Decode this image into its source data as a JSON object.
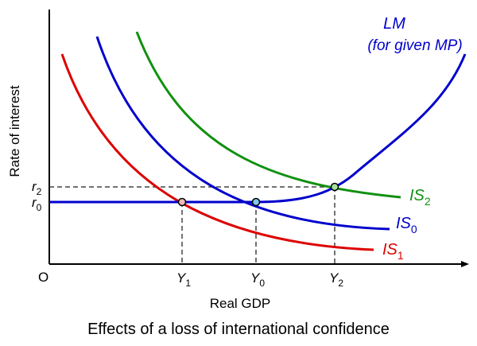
{
  "caption": "Effects of a loss of international confidence",
  "axes": {
    "x_label": "Real GDP",
    "y_label": "Rate of interest",
    "origin": "O"
  },
  "y_ticks": [
    {
      "base": "r",
      "sub": "2"
    },
    {
      "base": "r",
      "sub": "0"
    }
  ],
  "x_ticks": [
    {
      "base": "Y",
      "sub": "1"
    },
    {
      "base": "Y",
      "sub": "0"
    },
    {
      "base": "Y",
      "sub": "2"
    }
  ],
  "curves": {
    "lm": {
      "label": "LM",
      "note": "(for given MP)",
      "color": "#0000cc"
    },
    "is0": {
      "base": "IS",
      "sub": "0",
      "color": "#0000cc"
    },
    "is1": {
      "base": "IS",
      "sub": "1",
      "color": "#dd0000"
    },
    "is2": {
      "base": "IS",
      "sub": "2",
      "color": "#109010"
    }
  },
  "points": {
    "y1": "#f4b8b8",
    "y0": "#7fc8f0",
    "y2": "#a8e0a0"
  }
}
